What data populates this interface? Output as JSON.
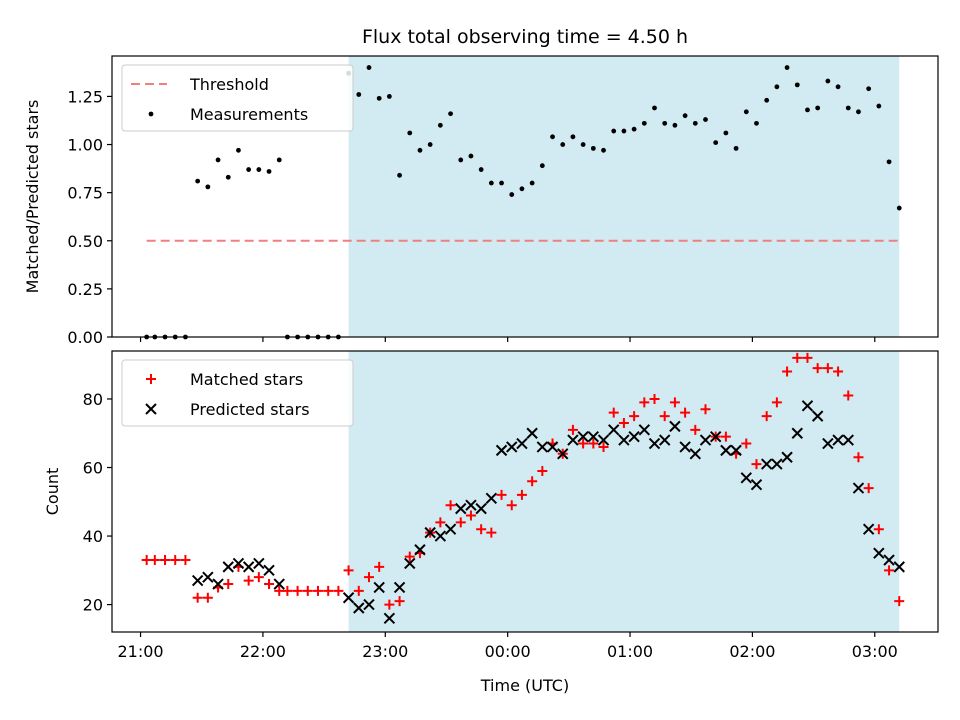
{
  "chart_data": [
    {
      "type": "scatter",
      "title": "Flux total observing time = 4.50 h",
      "xlabel": "",
      "ylabel": "Matched/Predicted stars",
      "x_range": [
        "20:46",
        "03:31"
      ],
      "ylim": [
        0,
        1.46
      ],
      "y_ticks": [
        "0.00",
        "0.25",
        "0.50",
        "0.75",
        "1.00",
        "1.25"
      ],
      "x_ticks_shown": false,
      "shaded_interval": {
        "start": "22:42",
        "end": "03:12",
        "color": "#add8e6"
      },
      "threshold": {
        "name": "Threshold",
        "value": 0.5,
        "x_start": "21:03",
        "x_end": "03:12",
        "color": "#f08080",
        "style": "dashed"
      },
      "legend": {
        "position": "upper-left",
        "entries": [
          "Threshold",
          "Measurements"
        ]
      },
      "series": [
        {
          "name": "Measurements",
          "color": "#000000",
          "marker": "dot",
          "points": [
            [
              "21:03",
              0.0
            ],
            [
              "21:07",
              0.0
            ],
            [
              "21:12",
              0.0
            ],
            [
              "21:17",
              0.0
            ],
            [
              "21:22",
              0.0
            ],
            [
              "21:28",
              0.81
            ],
            [
              "21:33",
              0.78
            ],
            [
              "21:38",
              0.92
            ],
            [
              "21:43",
              0.83
            ],
            [
              "21:48",
              0.97
            ],
            [
              "21:53",
              0.87
            ],
            [
              "21:58",
              0.87
            ],
            [
              "22:03",
              0.86
            ],
            [
              "22:08",
              0.92
            ],
            [
              "22:12",
              0.0
            ],
            [
              "22:17",
              0.0
            ],
            [
              "22:22",
              0.0
            ],
            [
              "22:27",
              0.0
            ],
            [
              "22:32",
              0.0
            ],
            [
              "22:37",
              0.0
            ],
            [
              "22:42",
              1.37
            ],
            [
              "22:47",
              1.26
            ],
            [
              "22:52",
              1.4
            ],
            [
              "22:57",
              1.24
            ],
            [
              "23:02",
              1.25
            ],
            [
              "23:07",
              0.84
            ],
            [
              "23:12",
              1.06
            ],
            [
              "23:17",
              0.97
            ],
            [
              "23:22",
              1.0
            ],
            [
              "23:27",
              1.1
            ],
            [
              "23:32",
              1.16
            ],
            [
              "23:37",
              0.92
            ],
            [
              "23:42",
              0.94
            ],
            [
              "23:47",
              0.87
            ],
            [
              "23:52",
              0.8
            ],
            [
              "23:57",
              0.8
            ],
            [
              "00:02",
              0.74
            ],
            [
              "00:07",
              0.77
            ],
            [
              "00:12",
              0.8
            ],
            [
              "00:17",
              0.89
            ],
            [
              "00:22",
              1.04
            ],
            [
              "00:27",
              1.0
            ],
            [
              "00:32",
              1.04
            ],
            [
              "00:37",
              1.0
            ],
            [
              "00:42",
              0.98
            ],
            [
              "00:47",
              0.97
            ],
            [
              "00:52",
              1.07
            ],
            [
              "00:57",
              1.07
            ],
            [
              "01:02",
              1.08
            ],
            [
              "01:07",
              1.11
            ],
            [
              "01:12",
              1.19
            ],
            [
              "01:17",
              1.11
            ],
            [
              "01:22",
              1.1
            ],
            [
              "01:27",
              1.15
            ],
            [
              "01:32",
              1.11
            ],
            [
              "01:37",
              1.13
            ],
            [
              "01:42",
              1.01
            ],
            [
              "01:47",
              1.06
            ],
            [
              "01:52",
              0.98
            ],
            [
              "01:57",
              1.17
            ],
            [
              "02:02",
              1.11
            ],
            [
              "02:07",
              1.23
            ],
            [
              "02:12",
              1.3
            ],
            [
              "02:17",
              1.4
            ],
            [
              "02:22",
              1.31
            ],
            [
              "02:27",
              1.18
            ],
            [
              "02:32",
              1.19
            ],
            [
              "02:37",
              1.33
            ],
            [
              "02:42",
              1.3
            ],
            [
              "02:47",
              1.19
            ],
            [
              "02:52",
              1.17
            ],
            [
              "02:57",
              1.29
            ],
            [
              "03:02",
              1.2
            ],
            [
              "03:07",
              0.91
            ],
            [
              "03:12",
              0.67
            ]
          ]
        }
      ]
    },
    {
      "type": "scatter",
      "title": "",
      "xlabel": "Time (UTC)",
      "ylabel": "Count",
      "x_range": [
        "20:46",
        "03:31"
      ],
      "ylim": [
        12,
        94
      ],
      "y_ticks": [
        "20",
        "40",
        "60",
        "80"
      ],
      "x_ticks": [
        "21:00",
        "22:00",
        "23:00",
        "00:00",
        "01:00",
        "02:00",
        "03:00"
      ],
      "shaded_interval": {
        "start": "22:42",
        "end": "03:12",
        "color": "#add8e6"
      },
      "legend": {
        "position": "upper-left",
        "entries": [
          "Matched stars",
          "Predicted stars"
        ]
      },
      "series": [
        {
          "name": "Matched stars",
          "color": "#ff0000",
          "marker": "plus",
          "points": [
            [
              "21:03",
              33
            ],
            [
              "21:07",
              33
            ],
            [
              "21:12",
              33
            ],
            [
              "21:17",
              33
            ],
            [
              "21:22",
              33
            ],
            [
              "21:28",
              22
            ],
            [
              "21:33",
              22
            ],
            [
              "21:38",
              25
            ],
            [
              "21:43",
              26
            ],
            [
              "21:48",
              31
            ],
            [
              "21:53",
              27
            ],
            [
              "21:58",
              28
            ],
            [
              "22:03",
              26
            ],
            [
              "22:08",
              24
            ],
            [
              "22:12",
              24
            ],
            [
              "22:17",
              24
            ],
            [
              "22:22",
              24
            ],
            [
              "22:27",
              24
            ],
            [
              "22:32",
              24
            ],
            [
              "22:37",
              24
            ],
            [
              "22:42",
              30
            ],
            [
              "22:47",
              24
            ],
            [
              "22:52",
              28
            ],
            [
              "22:57",
              31
            ],
            [
              "23:02",
              20
            ],
            [
              "23:07",
              21
            ],
            [
              "23:12",
              34
            ],
            [
              "23:17",
              35
            ],
            [
              "23:22",
              41
            ],
            [
              "23:27",
              44
            ],
            [
              "23:32",
              49
            ],
            [
              "23:37",
              44
            ],
            [
              "23:42",
              46
            ],
            [
              "23:47",
              42
            ],
            [
              "23:52",
              41
            ],
            [
              "23:57",
              52
            ],
            [
              "00:02",
              49
            ],
            [
              "00:07",
              52
            ],
            [
              "00:12",
              56
            ],
            [
              "00:17",
              59
            ],
            [
              "00:22",
              67
            ],
            [
              "00:27",
              64
            ],
            [
              "00:32",
              71
            ],
            [
              "00:37",
              67
            ],
            [
              "00:42",
              67
            ],
            [
              "00:47",
              66
            ],
            [
              "00:52",
              76
            ],
            [
              "00:57",
              73
            ],
            [
              "01:02",
              75
            ],
            [
              "01:07",
              79
            ],
            [
              "01:12",
              80
            ],
            [
              "01:17",
              75
            ],
            [
              "01:22",
              79
            ],
            [
              "01:27",
              76
            ],
            [
              "01:32",
              71
            ],
            [
              "01:37",
              77
            ],
            [
              "01:42",
              69
            ],
            [
              "01:47",
              69
            ],
            [
              "01:52",
              64
            ],
            [
              "01:57",
              67
            ],
            [
              "02:02",
              61
            ],
            [
              "02:07",
              75
            ],
            [
              "02:12",
              79
            ],
            [
              "02:17",
              88
            ],
            [
              "02:22",
              92
            ],
            [
              "02:27",
              92
            ],
            [
              "02:32",
              89
            ],
            [
              "02:37",
              89
            ],
            [
              "02:42",
              88
            ],
            [
              "02:47",
              81
            ],
            [
              "02:52",
              63
            ],
            [
              "02:57",
              54
            ],
            [
              "03:02",
              42
            ],
            [
              "03:07",
              30
            ],
            [
              "03:12",
              21
            ]
          ]
        },
        {
          "name": "Predicted stars",
          "color": "#000000",
          "marker": "x",
          "points": [
            [
              "21:28",
              27
            ],
            [
              "21:33",
              28
            ],
            [
              "21:38",
              26
            ],
            [
              "21:43",
              31
            ],
            [
              "21:48",
              32
            ],
            [
              "21:53",
              31
            ],
            [
              "21:58",
              32
            ],
            [
              "22:03",
              30
            ],
            [
              "22:08",
              26
            ],
            [
              "22:42",
              22
            ],
            [
              "22:47",
              19
            ],
            [
              "22:52",
              20
            ],
            [
              "22:57",
              25
            ],
            [
              "23:02",
              16
            ],
            [
              "23:07",
              25
            ],
            [
              "23:12",
              32
            ],
            [
              "23:17",
              36
            ],
            [
              "23:22",
              41
            ],
            [
              "23:27",
              40
            ],
            [
              "23:32",
              42
            ],
            [
              "23:37",
              48
            ],
            [
              "23:42",
              49
            ],
            [
              "23:47",
              48
            ],
            [
              "23:52",
              51
            ],
            [
              "23:57",
              65
            ],
            [
              "00:02",
              66
            ],
            [
              "00:07",
              67
            ],
            [
              "00:12",
              70
            ],
            [
              "00:17",
              66
            ],
            [
              "00:22",
              66
            ],
            [
              "00:27",
              64
            ],
            [
              "00:32",
              68
            ],
            [
              "00:37",
              69
            ],
            [
              "00:42",
              69
            ],
            [
              "00:47",
              68
            ],
            [
              "00:52",
              71
            ],
            [
              "00:57",
              68
            ],
            [
              "01:02",
              69
            ],
            [
              "01:07",
              71
            ],
            [
              "01:12",
              67
            ],
            [
              "01:17",
              68
            ],
            [
              "01:22",
              72
            ],
            [
              "01:27",
              66
            ],
            [
              "01:32",
              64
            ],
            [
              "01:37",
              68
            ],
            [
              "01:42",
              69
            ],
            [
              "01:47",
              65
            ],
            [
              "01:52",
              65
            ],
            [
              "01:57",
              57
            ],
            [
              "02:02",
              55
            ],
            [
              "02:07",
              61
            ],
            [
              "02:12",
              61
            ],
            [
              "02:17",
              63
            ],
            [
              "02:22",
              70
            ],
            [
              "02:27",
              78
            ],
            [
              "02:32",
              75
            ],
            [
              "02:37",
              67
            ],
            [
              "02:42",
              68
            ],
            [
              "02:47",
              68
            ],
            [
              "02:52",
              54
            ],
            [
              "02:57",
              42
            ],
            [
              "03:02",
              35
            ],
            [
              "03:07",
              33
            ],
            [
              "03:12",
              31
            ]
          ]
        }
      ]
    }
  ]
}
